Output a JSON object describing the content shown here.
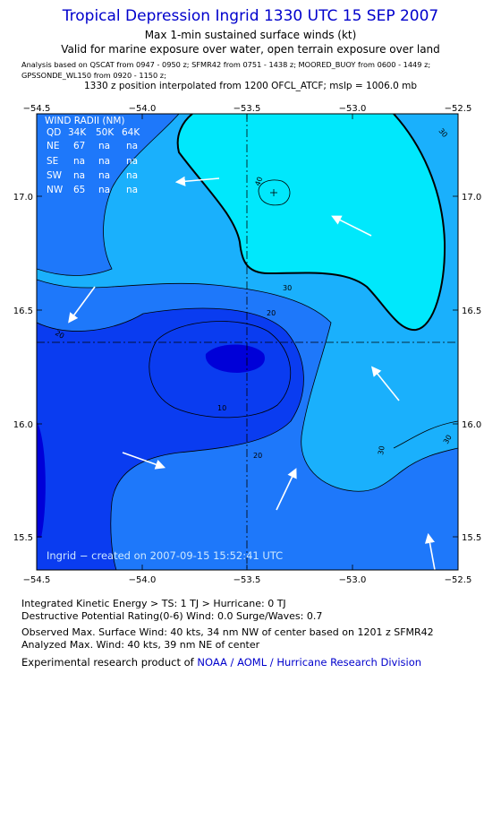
{
  "header": {
    "title": "Tropical Depression Ingrid 1330 UTC 15 SEP 2007",
    "subtitle": "Max 1-min sustained surface winds (kt)",
    "validity": "Valid for marine exposure over water, open terrain exposure over land",
    "analysis_sources": "Analysis based on  QSCAT from 0947 - 0950 z;  SFMR42 from 0751 - 1438 z;  MOORED_BUOY from 0600 - 1449 z;  GPSSONDE_WL150 from 0920 - 1150 z;",
    "interpolation_note": "1330 z position interpolated from 1200 OFCL_ATCF; mslp = 1006.0 mb"
  },
  "map": {
    "x_ticks": [
      "−54.5",
      "−54.0",
      "−53.5",
      "−53.0",
      "−52.5"
    ],
    "y_ticks": [
      "17.0",
      "16.5",
      "16.0",
      "15.5"
    ],
    "x_range": [
      -54.5,
      -52.5
    ],
    "y_range": [
      15.35,
      17.35
    ],
    "center": {
      "lon": -53.5,
      "lat": 16.35
    },
    "contour_labels": [
      "30",
      "40",
      "30",
      "20",
      "20",
      "10",
      "20",
      "30",
      "30"
    ],
    "colors": {
      "lt10": "#0000d8",
      "10-20": "#0a3cf0",
      "20-30": "#1e78fa",
      "30-40": "#1ab0fc",
      "gt40": "#00e8fc"
    },
    "wind_radii": {
      "title": "WIND RADII (NM)",
      "header": [
        "QD",
        "34K",
        "50K",
        "64K"
      ],
      "rows": [
        [
          "NE",
          "67",
          "na",
          "na"
        ],
        [
          "SE",
          "na",
          "na",
          "na"
        ],
        [
          "SW",
          "na",
          "na",
          "na"
        ],
        [
          "NW",
          "65",
          "na",
          "na"
        ]
      ]
    },
    "credit": "Ingrid − created on 2007-09-15 15:52:41 UTC"
  },
  "footer": {
    "ike": "Integrated Kinetic Energy > TS: 1 TJ   > Hurricane: 0 TJ",
    "dpr": "Destructive Potential Rating(0-6)  Wind: 0.0 Surge/Waves: 0.7",
    "observed_max": "Observed Max. Surface Wind: 40 kts, 34 nm NW of center based on 1201 z SFMR42",
    "analyzed_max": "Analyzed Max. Wind: 40 kts, 39 nm NE of center",
    "product_prefix": "Experimental research product of ",
    "product_org": "NOAA / AOML / Hurricane Research Division"
  }
}
